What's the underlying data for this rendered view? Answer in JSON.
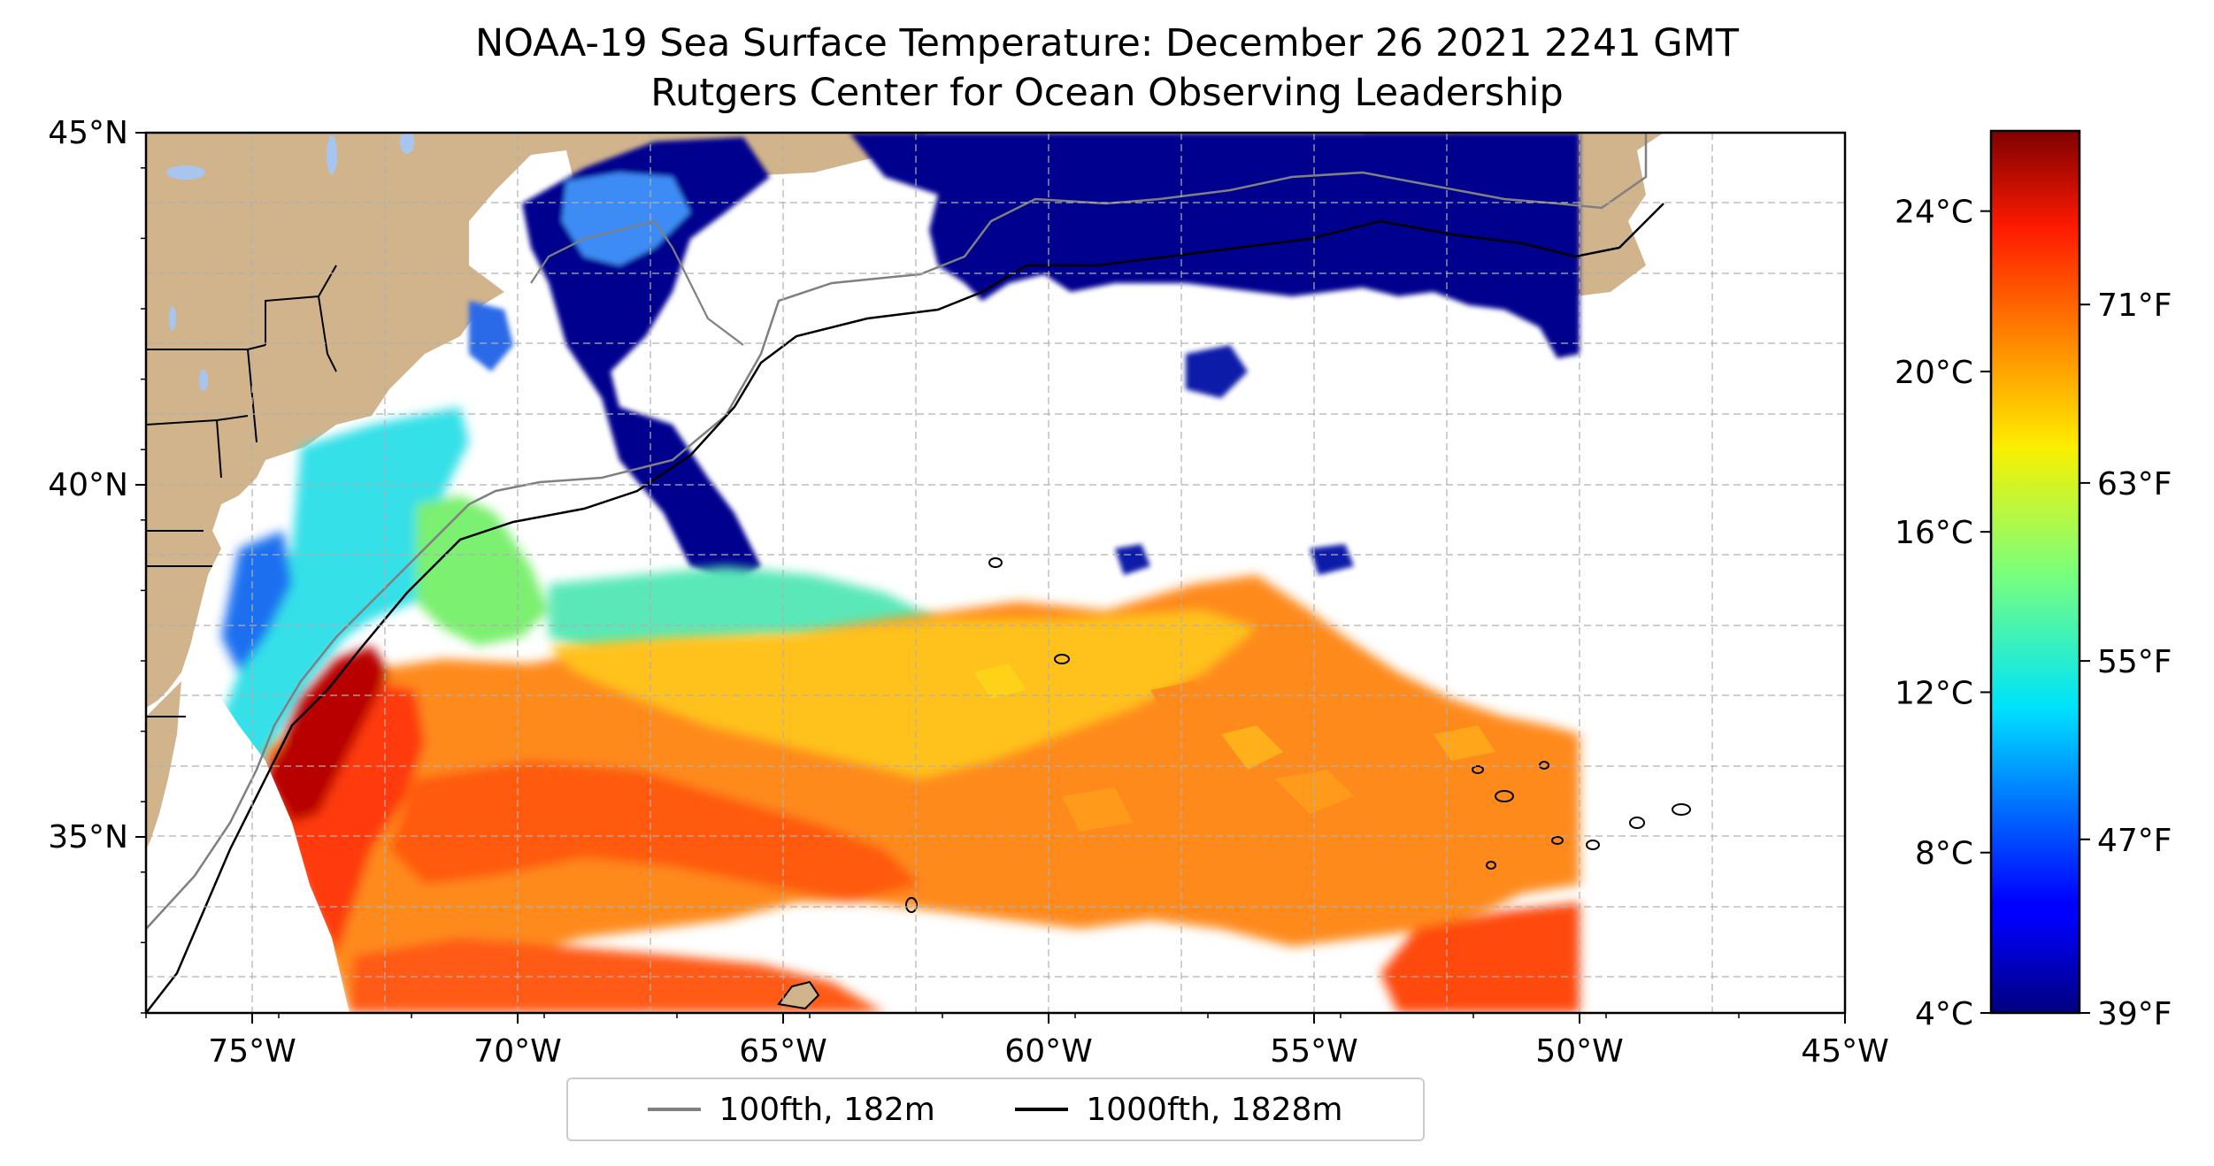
{
  "title": "NOAA-19 Sea Surface Temperature: December 26 2021 2241 GMT",
  "subtitle": "Rutgers Center for Ocean Observing Leadership",
  "map": {
    "lon_range": [
      -77,
      -45
    ],
    "lat_range": [
      32.5,
      45
    ],
    "lon_ticks": [
      {
        "value": -75,
        "label": "75°W"
      },
      {
        "value": -70,
        "label": "70°W"
      },
      {
        "value": -65,
        "label": "65°W"
      },
      {
        "value": -60,
        "label": "60°W"
      },
      {
        "value": -55,
        "label": "55°W"
      },
      {
        "value": -50,
        "label": "50°W"
      },
      {
        "value": -45,
        "label": "45°W"
      }
    ],
    "lat_ticks": [
      {
        "value": 45,
        "label": "45°N"
      },
      {
        "value": 40,
        "label": "40°N"
      },
      {
        "value": 35,
        "label": "35°N"
      }
    ],
    "grid": true,
    "colors": {
      "land": "#d2b48c",
      "lake": "#a8c5f0",
      "no_data": "#ffffff"
    }
  },
  "colorbar": {
    "colormap": "jet",
    "range_c": [
      4,
      26
    ],
    "celsius_ticks": [
      {
        "value": 4,
        "label": "4°C"
      },
      {
        "value": 8,
        "label": "8°C"
      },
      {
        "value": 12,
        "label": "12°C"
      },
      {
        "value": 16,
        "label": "16°C"
      },
      {
        "value": 20,
        "label": "20°C"
      },
      {
        "value": 24,
        "label": "24°C"
      }
    ],
    "fahrenheit_ticks": [
      {
        "value_c": 3.89,
        "label": "39°F"
      },
      {
        "value_c": 8.33,
        "label": "47°F"
      },
      {
        "value_c": 12.78,
        "label": "55°F"
      },
      {
        "value_c": 17.22,
        "label": "63°F"
      },
      {
        "value_c": 21.67,
        "label": "71°F"
      }
    ]
  },
  "legend": {
    "placement": "bottom-center",
    "entries": [
      {
        "label": "100fth, 182m",
        "color": "#808080"
      },
      {
        "label": "1000fth, 1828m",
        "color": "#000000"
      }
    ]
  }
}
